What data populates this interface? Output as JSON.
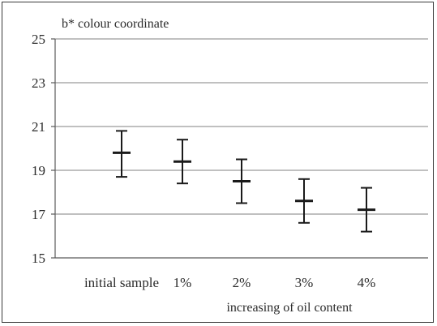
{
  "chart_data": {
    "type": "errorbar",
    "ylabel": "b* colour coordinate",
    "xlabel": "increasing of oil content",
    "categories": [
      "initial sample",
      "1%",
      "2%",
      "3%",
      "4%"
    ],
    "series": [
      {
        "values": [
          19.8,
          19.4,
          18.5,
          17.6,
          17.2
        ],
        "lower": [
          18.7,
          18.4,
          17.5,
          16.6,
          16.2
        ],
        "upper": [
          20.8,
          20.4,
          19.5,
          18.6,
          18.2
        ]
      }
    ],
    "ylim": [
      15,
      25
    ],
    "yticks": [
      15,
      17,
      19,
      21,
      23,
      25
    ],
    "grid": true,
    "colors": {
      "marker": "#1a1a1a",
      "grid": "#9a9a9a",
      "axis": "#5a5a5a"
    }
  }
}
